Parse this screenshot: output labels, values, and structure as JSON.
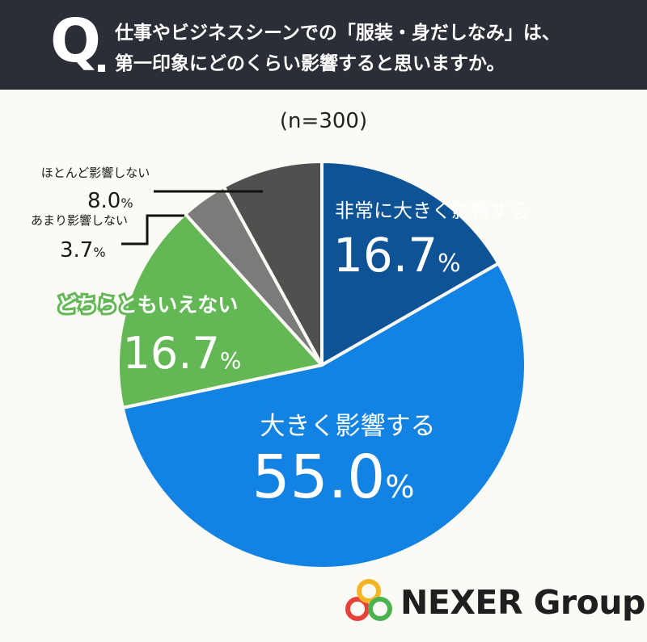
{
  "header": {
    "q_mark": "Q",
    "line1": "仕事やビジネスシーンでの「服装・身だしなみ」は、",
    "line2": "第一印象にどのくらい影響すると思いますか。"
  },
  "sample_label": "(n=300)",
  "chart_data": {
    "type": "pie",
    "start_angle_deg": 0,
    "direction": "clockwise",
    "slices": [
      {
        "label": "非常に大きく影響する",
        "value": 16.7,
        "display": "16.7",
        "color": "#0d5396",
        "label_color": "#ffffff"
      },
      {
        "label": "大きく影響する",
        "value": 55.0,
        "display": "55.0",
        "color": "#1383e3",
        "label_color": "#ffffff"
      },
      {
        "label": "どちらともいえない",
        "value": 16.7,
        "display": "16.7",
        "color": "#63b855",
        "label_color": "#ffffff"
      },
      {
        "label": "あまり影響しない",
        "value": 3.7,
        "display": "3.7",
        "color": "#7b7b7b",
        "label_color": "#1a1a1a"
      },
      {
        "label": "ほとんど影響しない",
        "value": 8.0,
        "display": "8.0",
        "color": "#505050",
        "label_color": "#1a1a1a"
      }
    ],
    "unit": "%"
  },
  "logo": {
    "text": "NEXER Group",
    "ring_colors": [
      "#e8403a",
      "#f4b622",
      "#4ab24f"
    ]
  }
}
